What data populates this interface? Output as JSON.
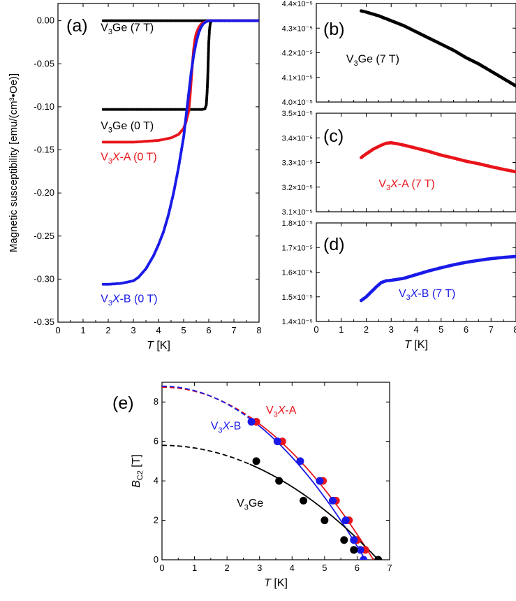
{
  "chart_data": [
    {
      "id": "a",
      "panel_label": "(a)",
      "type": "scatter",
      "ylabel": "Magnetic susceptibility [emu/(cm³•Oe)]",
      "xlabel_italic": "T",
      "xlabel_unit": " [K]",
      "xlim": [
        0,
        8
      ],
      "ylim": [
        -0.35,
        0.02
      ],
      "xticks": [
        0,
        1,
        2,
        3,
        4,
        5,
        6,
        7,
        8
      ],
      "yticks": [
        0.0,
        -0.05,
        -0.1,
        -0.15,
        -0.2,
        -0.25,
        -0.3,
        -0.35
      ],
      "ytick_labels": [
        "0.00",
        "-0.05",
        "-0.10",
        "-0.15",
        "-0.20",
        "-0.25",
        "-0.30",
        "-0.35"
      ],
      "annotations": [
        {
          "pre": "V",
          "sub": "3",
          "mid": "Ge",
          "italic": "",
          "post": " (7 T)",
          "color": "#000000",
          "x": 1.7,
          "y": -0.012
        },
        {
          "pre": "V",
          "sub": "3",
          "mid": "Ge",
          "italic": "",
          "post": " (0 T)",
          "color": "#000000",
          "x": 1.7,
          "y": -0.126
        },
        {
          "pre": "V",
          "sub": "3",
          "mid": "",
          "italic": "X",
          "post": "-A (0 T)",
          "color": "#e8141a",
          "x": 1.7,
          "y": -0.162
        },
        {
          "pre": "V",
          "sub": "3",
          "mid": "",
          "italic": "X",
          "post": "-B (0 T)",
          "color": "#1a1ae8",
          "x": 1.7,
          "y": -0.327
        }
      ],
      "series": [
        {
          "color": "#000000",
          "x": [
            1.8,
            2,
            2.5,
            3,
            3.5,
            4,
            4.5,
            5,
            5.5,
            6,
            6.5,
            7,
            7.5,
            8
          ],
          "y": [
            0,
            0,
            0,
            0,
            0,
            0,
            0,
            0,
            0,
            0,
            0,
            0,
            0,
            0
          ]
        },
        {
          "color": "#000000",
          "x": [
            1.8,
            2,
            2.5,
            3,
            3.5,
            4,
            4.5,
            5,
            5.5,
            5.75,
            5.85,
            5.9,
            5.93,
            5.96,
            5.98,
            6.0,
            6.03,
            6.06,
            6.1,
            6.2,
            6.5,
            7,
            8
          ],
          "y": [
            -0.103,
            -0.103,
            -0.103,
            -0.103,
            -0.103,
            -0.103,
            -0.103,
            -0.103,
            -0.103,
            -0.103,
            -0.102,
            -0.098,
            -0.085,
            -0.065,
            -0.045,
            -0.025,
            -0.01,
            -0.003,
            0,
            0,
            0,
            0,
            0
          ]
        },
        {
          "color": "#e8141a",
          "x": [
            1.8,
            2,
            2.5,
            3,
            3.5,
            4,
            4.5,
            4.8,
            5.0,
            5.1,
            5.2,
            5.25,
            5.3,
            5.35,
            5.4,
            5.45,
            5.5,
            5.6,
            5.7,
            5.8,
            5.9,
            6.0,
            6.5,
            7,
            8
          ],
          "y": [
            -0.141,
            -0.141,
            -0.141,
            -0.141,
            -0.14,
            -0.139,
            -0.136,
            -0.132,
            -0.125,
            -0.117,
            -0.105,
            -0.09,
            -0.07,
            -0.05,
            -0.033,
            -0.022,
            -0.015,
            -0.008,
            -0.004,
            -0.002,
            -0.001,
            0,
            0,
            0,
            0
          ]
        },
        {
          "color": "#1a1ae8",
          "x": [
            1.8,
            2,
            2.5,
            3,
            3.2,
            3.5,
            3.8,
            4,
            4.2,
            4.4,
            4.6,
            4.8,
            5.0,
            5.1,
            5.2,
            5.3,
            5.4,
            5.5,
            5.6,
            5.7,
            5.8,
            5.9,
            6.0,
            6.5,
            7,
            8
          ],
          "y": [
            -0.306,
            -0.306,
            -0.305,
            -0.302,
            -0.298,
            -0.288,
            -0.273,
            -0.26,
            -0.245,
            -0.225,
            -0.2,
            -0.17,
            -0.135,
            -0.11,
            -0.085,
            -0.06,
            -0.04,
            -0.025,
            -0.014,
            -0.007,
            -0.003,
            -0.001,
            0,
            0,
            0,
            0
          ]
        }
      ]
    },
    {
      "id": "b",
      "panel_label": "(b)",
      "type": "scatter",
      "xlim": [
        0,
        8
      ],
      "ylim": [
        4.0,
        4.4
      ],
      "yticks": [
        4.0,
        4.1,
        4.2,
        4.3,
        4.4
      ],
      "ytick_labels": [
        "4.0×10⁻⁵",
        "4.1×10⁻⁵",
        "4.2×10⁻⁵",
        "4.3×10⁻⁵",
        "4.4×10⁻⁵"
      ],
      "annotations": [
        {
          "pre": "V",
          "sub": "3",
          "mid": "Ge",
          "italic": "",
          "post": " (7 T)",
          "color": "#000000",
          "x": 1.2,
          "y": 4.16
        }
      ],
      "series": [
        {
          "color": "#000000",
          "x": [
            1.8,
            2,
            2.5,
            3,
            3.5,
            4,
            4.5,
            5,
            5.5,
            6,
            6.5,
            7,
            7.5,
            8
          ],
          "y": [
            4.37,
            4.365,
            4.35,
            4.33,
            4.31,
            4.285,
            4.26,
            4.235,
            4.21,
            4.18,
            4.155,
            4.125,
            4.095,
            4.065
          ]
        }
      ]
    },
    {
      "id": "c",
      "panel_label": "(c)",
      "type": "scatter",
      "xlim": [
        0,
        8
      ],
      "ylim": [
        3.1,
        3.5
      ],
      "yticks": [
        3.1,
        3.2,
        3.3,
        3.4,
        3.5
      ],
      "ytick_labels": [
        "3.1×10⁻⁵",
        "3.2×10⁻⁵",
        "3.3×10⁻⁵",
        "3.4×10⁻⁵",
        "3.5×10⁻⁵"
      ],
      "annotations": [
        {
          "pre": "V",
          "sub": "3",
          "mid": "",
          "italic": "X",
          "post": "-A (7 T)",
          "color": "#e8141a",
          "x": 2.5,
          "y": 3.2
        }
      ],
      "series": [
        {
          "color": "#e8141a",
          "x": [
            1.8,
            2,
            2.3,
            2.6,
            2.8,
            3,
            3.3,
            3.6,
            4,
            4.5,
            5,
            5.5,
            6,
            6.5,
            7,
            7.5,
            8
          ],
          "y": [
            3.32,
            3.335,
            3.355,
            3.37,
            3.378,
            3.38,
            3.375,
            3.368,
            3.358,
            3.345,
            3.33,
            3.318,
            3.305,
            3.295,
            3.283,
            3.272,
            3.262
          ]
        }
      ]
    },
    {
      "id": "d",
      "panel_label": "(d)",
      "type": "scatter",
      "xlabel_italic": "T",
      "xlabel_unit": " [K]",
      "xlim": [
        0,
        8
      ],
      "ylim": [
        1.4,
        1.8
      ],
      "xticks": [
        0,
        1,
        2,
        3,
        4,
        5,
        6,
        7,
        8
      ],
      "yticks": [
        1.4,
        1.5,
        1.6,
        1.7,
        1.8
      ],
      "ytick_labels": [
        "1.4×10⁻⁵",
        "1.5×10⁻⁵",
        "1.6×10⁻⁵",
        "1.7×10⁻⁵",
        "1.8×10⁻⁵"
      ],
      "annotations": [
        {
          "pre": "V",
          "sub": "3",
          "mid": "",
          "italic": "X",
          "post": "-B (7 T)",
          "color": "#1a1ae8",
          "x": 3.3,
          "y": 1.5
        }
      ],
      "series": [
        {
          "color": "#1a1ae8",
          "x": [
            1.8,
            2,
            2.2,
            2.4,
            2.6,
            2.8,
            3,
            3.5,
            4,
            4.5,
            5,
            5.5,
            6,
            6.5,
            7,
            7.5,
            8
          ],
          "y": [
            1.485,
            1.5,
            1.52,
            1.54,
            1.558,
            1.565,
            1.567,
            1.575,
            1.59,
            1.605,
            1.618,
            1.63,
            1.64,
            1.648,
            1.655,
            1.66,
            1.664
          ]
        }
      ]
    },
    {
      "id": "e",
      "panel_label": "(e)",
      "type": "scatter",
      "ylabel_italic": "B",
      "ylabel_sub": "C2",
      "ylabel_unit": " [T]",
      "xlabel_italic": "T",
      "xlabel_unit": " [K]",
      "xlim": [
        0,
        7
      ],
      "ylim": [
        0,
        9
      ],
      "xticks": [
        0,
        1,
        2,
        3,
        4,
        5,
        6,
        7
      ],
      "yticks": [
        0,
        2,
        4,
        6,
        8
      ],
      "annotations": [
        {
          "pre": "V",
          "sub": "3",
          "mid": "",
          "italic": "X",
          "post": "-A",
          "color": "#e8141a",
          "x": 3.2,
          "y": 7.4
        },
        {
          "pre": "V",
          "sub": "3",
          "mid": "",
          "italic": "X",
          "post": "-B",
          "color": "#1a1ae8",
          "x": 1.5,
          "y": 6.6
        },
        {
          "pre": "V",
          "sub": "3",
          "mid": "Ge",
          "italic": "",
          "post": "",
          "color": "#000000",
          "x": 2.3,
          "y": 2.7
        }
      ],
      "series": [
        {
          "color": "#e8141a",
          "tc": 6.5,
          "b0": 8.75,
          "x": [
            2.9,
            3.7,
            4.95,
            5.35,
            5.75,
            6.0,
            6.25
          ],
          "y": [
            7,
            6,
            4,
            3,
            2,
            1,
            0.5
          ]
        },
        {
          "color": "#1a1ae8",
          "tc": 6.25,
          "b0": 8.8,
          "x": [
            2.75,
            3.55,
            4.25,
            4.85,
            5.25,
            5.65,
            5.9,
            6.1,
            6.2
          ],
          "y": [
            7,
            6,
            5,
            4,
            3,
            2,
            1,
            0.5,
            0
          ]
        },
        {
          "color": "#000000",
          "tc": 6.65,
          "b0": 5.8,
          "x": [
            2.9,
            3.6,
            4.35,
            5.0,
            5.6,
            5.9,
            6.65
          ],
          "y": [
            5,
            4,
            3,
            2,
            1,
            0.5,
            0
          ]
        }
      ]
    }
  ]
}
